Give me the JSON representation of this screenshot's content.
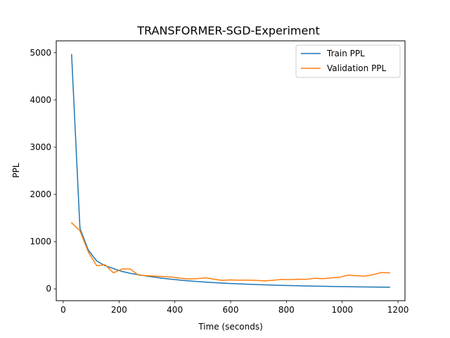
{
  "chart_data": {
    "type": "line",
    "title": "TRANSFORMER-SGD-Experiment",
    "xlabel": "Time (seconds)",
    "ylabel": "PPL",
    "xlim": [
      -25,
      1225
    ],
    "ylim": [
      -250,
      5250
    ],
    "xticks": [
      0,
      200,
      400,
      600,
      800,
      1000,
      1200
    ],
    "yticks": [
      0,
      1000,
      2000,
      3000,
      4000,
      5000
    ],
    "grid": false,
    "legend_position": "top-right",
    "series": [
      {
        "name": "Train PPL",
        "color": "#1f77b4",
        "x": [
          30,
          60,
          90,
          120,
          150,
          180,
          210,
          240,
          270,
          300,
          330,
          360,
          390,
          420,
          450,
          480,
          510,
          540,
          570,
          600,
          630,
          660,
          690,
          720,
          750,
          780,
          810,
          840,
          870,
          900,
          930,
          960,
          990,
          1020,
          1050,
          1080,
          1110,
          1140,
          1170
        ],
        "y": [
          4960,
          1280,
          820,
          590,
          490,
          430,
          370,
          330,
          300,
          270,
          245,
          222,
          202,
          185,
          170,
          156,
          143,
          132,
          122,
          113,
          105,
          98,
          92,
          86,
          80,
          75,
          70,
          66,
          62,
          58,
          55,
          52,
          49,
          46,
          43,
          41,
          39,
          37,
          35
        ]
      },
      {
        "name": "Validation PPL",
        "color": "#ff7f0e",
        "x": [
          30,
          60,
          90,
          120,
          150,
          180,
          210,
          240,
          270,
          300,
          330,
          360,
          390,
          420,
          450,
          480,
          510,
          540,
          570,
          600,
          630,
          660,
          690,
          720,
          750,
          780,
          810,
          840,
          870,
          900,
          930,
          960,
          990,
          1020,
          1050,
          1080,
          1110,
          1140,
          1170
        ],
        "y": [
          1400,
          1230,
          780,
          490,
          510,
          340,
          420,
          420,
          290,
          280,
          270,
          260,
          250,
          225,
          210,
          215,
          235,
          205,
          180,
          190,
          185,
          185,
          180,
          170,
          180,
          200,
          195,
          205,
          200,
          225,
          215,
          230,
          245,
          290,
          280,
          270,
          300,
          345,
          340
        ]
      }
    ]
  }
}
